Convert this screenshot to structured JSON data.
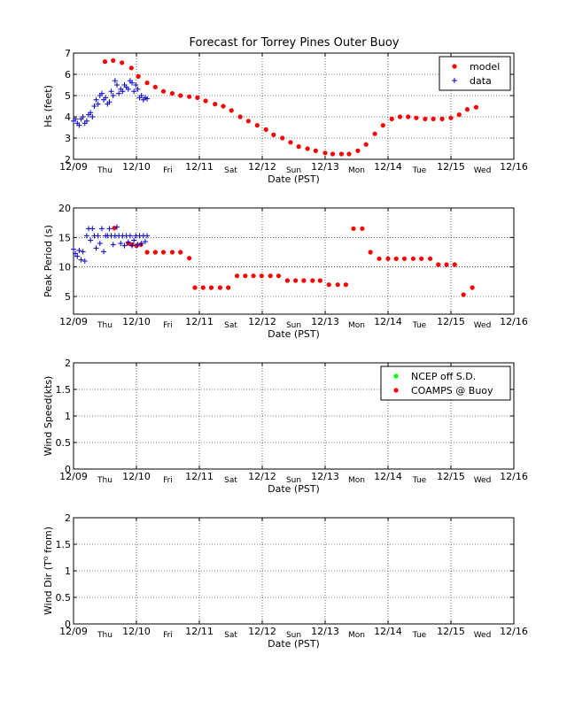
{
  "figure_title": "Forecast for Torrey Pines Outer Buoy",
  "chart_data": [
    {
      "type": "scatter",
      "id": "hs",
      "title": "Forecast for Torrey Pines Outer Buoy",
      "xlabel": "Date (PST)",
      "ylabel": "Hs (feet)",
      "xlim": [
        0,
        7
      ],
      "ylim": [
        2,
        7
      ],
      "yticks": [
        2,
        3,
        4,
        5,
        6,
        7
      ],
      "xtick_labels": [
        "12/09",
        "12/10",
        "12/11",
        "12/12",
        "12/13",
        "12/14",
        "12/15",
        "12/16"
      ],
      "day_labels": [
        "Thu",
        "Fri",
        "Sat",
        "Sun",
        "Mon",
        "Tue",
        "Wed"
      ],
      "grid": true,
      "legend": {
        "placement": "top-right",
        "entries": [
          "model",
          "data"
        ]
      },
      "series": [
        {
          "name": "model",
          "marker": "dot",
          "color": "#ff0000",
          "x": [
            0.5,
            0.63,
            0.77,
            0.92,
            1.03,
            1.17,
            1.3,
            1.43,
            1.57,
            1.7,
            1.84,
            1.97,
            2.1,
            2.25,
            2.38,
            2.51,
            2.65,
            2.78,
            2.92,
            3.06,
            3.18,
            3.32,
            3.45,
            3.58,
            3.72,
            3.85,
            4.0,
            4.12,
            4.26,
            4.38,
            4.52,
            4.65,
            4.79,
            4.92,
            5.06,
            5.19,
            5.32,
            5.45,
            5.59,
            5.72,
            5.86,
            6.0,
            6.13,
            6.26,
            6.4
          ],
          "y": [
            6.6,
            6.65,
            6.55,
            6.3,
            5.9,
            5.6,
            5.4,
            5.2,
            5.1,
            5.0,
            4.95,
            4.9,
            4.75,
            4.6,
            4.5,
            4.3,
            4.0,
            3.8,
            3.6,
            3.4,
            3.15,
            3.0,
            2.8,
            2.6,
            2.5,
            2.4,
            2.3,
            2.25,
            2.25,
            2.25,
            2.4,
            2.7,
            3.2,
            3.6,
            3.9,
            4.0,
            4.0,
            3.95,
            3.9,
            3.9,
            3.9,
            3.95,
            4.1,
            4.35,
            4.45
          ]
        },
        {
          "name": "data",
          "marker": "plus",
          "color": "#0000cc",
          "x": [
            0.0,
            0.03,
            0.06,
            0.09,
            0.12,
            0.15,
            0.18,
            0.21,
            0.24,
            0.27,
            0.3,
            0.33,
            0.36,
            0.39,
            0.42,
            0.45,
            0.48,
            0.51,
            0.54,
            0.57,
            0.6,
            0.63,
            0.66,
            0.69,
            0.72,
            0.75,
            0.78,
            0.81,
            0.84,
            0.87,
            0.9,
            0.93,
            0.96,
            0.99,
            1.02,
            1.05,
            1.08,
            1.11,
            1.14,
            1.17
          ],
          "y": [
            3.8,
            3.9,
            3.7,
            3.6,
            3.9,
            4.0,
            3.7,
            3.8,
            4.1,
            4.2,
            4.0,
            4.5,
            4.8,
            4.6,
            5.0,
            5.1,
            4.8,
            4.9,
            4.6,
            4.7,
            5.2,
            5.0,
            5.7,
            5.5,
            5.1,
            5.3,
            5.2,
            5.5,
            5.4,
            5.3,
            5.7,
            5.6,
            5.2,
            5.5,
            5.3,
            4.9,
            5.0,
            4.8,
            4.9,
            4.85
          ]
        }
      ]
    },
    {
      "type": "scatter",
      "id": "period",
      "xlabel": "Date (PST)",
      "ylabel": "Peak Period (s)",
      "xlim": [
        0,
        7
      ],
      "ylim": [
        2,
        20
      ],
      "yticks": [
        5,
        10,
        15,
        20
      ],
      "xtick_labels": [
        "12/09",
        "12/10",
        "12/11",
        "12/12",
        "12/13",
        "12/14",
        "12/15",
        "12/16"
      ],
      "day_labels": [
        "Thu",
        "Fri",
        "Sat",
        "Sun",
        "Mon",
        "Tue",
        "Wed"
      ],
      "grid": true,
      "series": [
        {
          "name": "model",
          "marker": "dot",
          "color": "#ff0000",
          "x": [
            0.65,
            0.87,
            0.93,
            1.0,
            1.07,
            1.17,
            1.3,
            1.43,
            1.57,
            1.7,
            1.84,
            1.93,
            2.06,
            2.19,
            2.33,
            2.46,
            2.6,
            2.73,
            2.86,
            2.99,
            3.13,
            3.26,
            3.4,
            3.53,
            3.66,
            3.8,
            3.92,
            4.06,
            4.2,
            4.33,
            4.45,
            4.59,
            4.72,
            4.86,
            5.0,
            5.13,
            5.26,
            5.4,
            5.53,
            5.67,
            5.8,
            5.93,
            6.06,
            6.2,
            6.34
          ],
          "y": [
            16.6,
            14.0,
            13.8,
            13.6,
            13.8,
            12.5,
            12.5,
            12.5,
            12.5,
            12.5,
            11.5,
            6.5,
            6.5,
            6.5,
            6.5,
            6.5,
            8.5,
            8.5,
            8.5,
            8.5,
            8.5,
            8.5,
            7.7,
            7.7,
            7.7,
            7.7,
            7.7,
            7.0,
            7.0,
            7.0,
            16.5,
            16.5,
            12.5,
            11.4,
            11.4,
            11.4,
            11.4,
            11.4,
            11.4,
            11.4,
            10.4,
            10.4,
            10.4,
            5.3,
            6.5
          ]
        },
        {
          "name": "data",
          "marker": "plus",
          "color": "#0000cc",
          "x": [
            0.0,
            0.03,
            0.06,
            0.09,
            0.12,
            0.15,
            0.18,
            0.21,
            0.24,
            0.27,
            0.3,
            0.33,
            0.36,
            0.39,
            0.42,
            0.45,
            0.48,
            0.51,
            0.54,
            0.57,
            0.6,
            0.63,
            0.66,
            0.69,
            0.72,
            0.75,
            0.78,
            0.81,
            0.84,
            0.87,
            0.9,
            0.93,
            0.96,
            0.99,
            1.02,
            1.05,
            1.08,
            1.11,
            1.14,
            1.17
          ],
          "y": [
            13.0,
            12.3,
            11.8,
            12.8,
            11.2,
            12.6,
            11.0,
            15.3,
            16.5,
            14.5,
            16.5,
            15.3,
            13.2,
            15.3,
            14.0,
            16.5,
            12.6,
            15.3,
            15.3,
            16.5,
            15.3,
            13.8,
            15.3,
            16.8,
            15.3,
            14.0,
            15.3,
            13.6,
            15.3,
            14.2,
            15.3,
            13.6,
            14.5,
            15.3,
            13.8,
            15.3,
            14.0,
            15.3,
            14.3,
            15.3
          ]
        }
      ]
    },
    {
      "type": "scatter",
      "id": "wspd",
      "xlabel": "Date (PST)",
      "ylabel": "Wind Speed(kts)",
      "xlim": [
        0,
        7
      ],
      "ylim": [
        0,
        2
      ],
      "yticks": [
        0,
        0.5,
        1,
        1.5,
        2
      ],
      "xtick_labels": [
        "12/09",
        "12/10",
        "12/11",
        "12/12",
        "12/13",
        "12/14",
        "12/15",
        "12/16"
      ],
      "day_labels": [
        "Thu",
        "Fri",
        "Sat",
        "Sun",
        "Mon",
        "Tue",
        "Wed"
      ],
      "grid": true,
      "legend": {
        "placement": "top-right",
        "entries": [
          "NCEP off S.D.",
          "COAMPS @ Buoy"
        ]
      },
      "series": [
        {
          "name": "NCEP off S.D.",
          "marker": "dot",
          "color": "#00ff00",
          "x": [],
          "y": []
        },
        {
          "name": "COAMPS @ Buoy",
          "marker": "dot",
          "color": "#ff0000",
          "x": [],
          "y": []
        }
      ]
    },
    {
      "type": "scatter",
      "id": "wdir",
      "xlabel": "Date (PST)",
      "ylabel": "Wind Dir (T",
      "ylabel_sup": "o",
      "ylabel_tail": " from)",
      "xlim": [
        0,
        7
      ],
      "ylim": [
        0,
        2
      ],
      "yticks": [
        0,
        0.5,
        1,
        1.5,
        2
      ],
      "xtick_labels": [
        "12/09",
        "12/10",
        "12/11",
        "12/12",
        "12/13",
        "12/14",
        "12/15",
        "12/16"
      ],
      "day_labels": [
        "Thu",
        "Fri",
        "Sat",
        "Sun",
        "Mon",
        "Tue",
        "Wed"
      ],
      "grid": true,
      "series": []
    }
  ]
}
